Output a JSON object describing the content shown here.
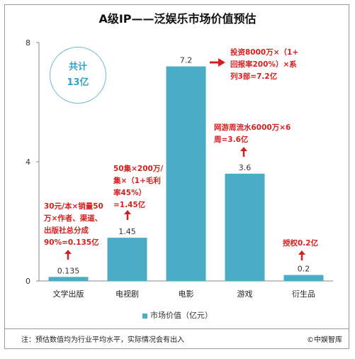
{
  "title": "A级IP——泛娱乐市场价值预估",
  "badge": {
    "line1": "共计",
    "line2": "13亿"
  },
  "annotations": {
    "books": "30元/本×销量50\n万×作者、渠道、\n出版社总分成\n90%=0.135亿",
    "tv": "50集×200万/\n集×（1+毛利\n率45%）\n=1.45亿",
    "game": "网游周流水6000万×6\n周=3.6亿",
    "film": "投资8000万×（1+\n回报率200%）×系\n列3部=7.2亿",
    "merch": "授权0.2亿"
  },
  "legend_label": "市场价值（亿元）",
  "note": "注：预估数值均为行业平均水平，实际情况会有出入",
  "source": "©中娱智库",
  "colors": {
    "bar": "#4bacc6",
    "annotation": "#d71e1e",
    "axis": "#888888"
  },
  "chart_data": {
    "type": "bar",
    "title": "A级IP——泛娱乐市场价值预估",
    "categories": [
      "文学出版",
      "电视剧",
      "电影",
      "游戏",
      "衍生品"
    ],
    "series": [
      {
        "name": "市场价值（亿元）",
        "values": [
          0.135,
          1.45,
          7.2,
          3.6,
          0.2
        ]
      }
    ],
    "value_labels": [
      "0.135",
      "1.45",
      "7.2",
      "3.6",
      "0.2"
    ],
    "yticks": [
      "0",
      "4",
      "8"
    ],
    "ylim": [
      0,
      8
    ],
    "grid": false,
    "legend": "bottom"
  }
}
